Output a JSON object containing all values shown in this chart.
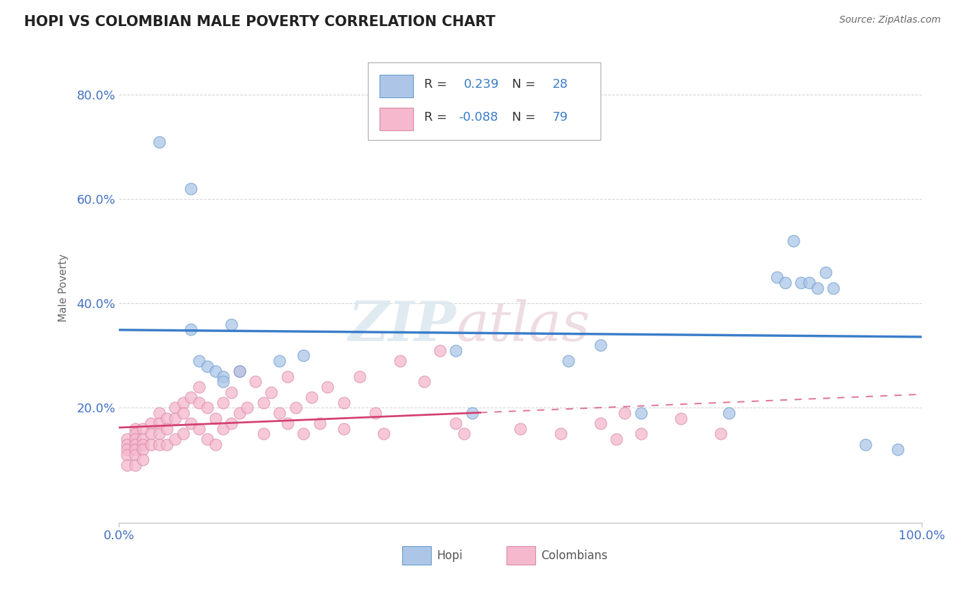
{
  "title": "HOPI VS COLOMBIAN MALE POVERTY CORRELATION CHART",
  "source": "Source: ZipAtlas.com",
  "ylabel": "Male Poverty",
  "xlim": [
    0.0,
    1.0
  ],
  "ylim": [
    -0.02,
    0.88
  ],
  "y_ticks": [
    0.0,
    0.2,
    0.4,
    0.6,
    0.8
  ],
  "y_tick_labels": [
    "",
    "20.0%",
    "40.0%",
    "60.0%",
    "80.0%"
  ],
  "x_ticks": [
    0.0,
    1.0
  ],
  "x_tick_labels": [
    "0.0%",
    "100.0%"
  ],
  "hopi_R": 0.239,
  "hopi_N": 28,
  "colombian_R": -0.088,
  "colombian_N": 79,
  "hopi_color": "#adc6e8",
  "hopi_edge_color": "#6699cc",
  "hopi_line_color": "#3a7dc9",
  "colombian_color": "#f5b8cc",
  "colombian_edge_color": "#d888aa",
  "colombian_line_color": "#d44070",
  "background_color": "#ffffff",
  "grid_color": "#cccccc",
  "watermark_color": "#dde8f0",
  "hopi_x": [
    0.05,
    0.09,
    0.09,
    0.1,
    0.11,
    0.12,
    0.13,
    0.13,
    0.14,
    0.15,
    0.2,
    0.23,
    0.42,
    0.44,
    0.56,
    0.6,
    0.65,
    0.76,
    0.82,
    0.83,
    0.84,
    0.85,
    0.86,
    0.87,
    0.88,
    0.89,
    0.93,
    0.97
  ],
  "hopi_y": [
    0.71,
    0.62,
    0.35,
    0.29,
    0.28,
    0.27,
    0.26,
    0.25,
    0.36,
    0.27,
    0.29,
    0.3,
    0.31,
    0.19,
    0.29,
    0.32,
    0.19,
    0.19,
    0.45,
    0.44,
    0.52,
    0.44,
    0.44,
    0.43,
    0.46,
    0.43,
    0.13,
    0.12
  ],
  "colombian_x": [
    0.01,
    0.01,
    0.01,
    0.01,
    0.01,
    0.02,
    0.02,
    0.02,
    0.02,
    0.02,
    0.02,
    0.02,
    0.03,
    0.03,
    0.03,
    0.03,
    0.03,
    0.04,
    0.04,
    0.04,
    0.05,
    0.05,
    0.05,
    0.05,
    0.06,
    0.06,
    0.06,
    0.07,
    0.07,
    0.07,
    0.08,
    0.08,
    0.08,
    0.09,
    0.09,
    0.1,
    0.1,
    0.1,
    0.11,
    0.11,
    0.12,
    0.12,
    0.13,
    0.13,
    0.14,
    0.14,
    0.15,
    0.15,
    0.16,
    0.17,
    0.18,
    0.18,
    0.19,
    0.2,
    0.21,
    0.21,
    0.22,
    0.23,
    0.24,
    0.25,
    0.26,
    0.28,
    0.28,
    0.3,
    0.32,
    0.33,
    0.35,
    0.38,
    0.4,
    0.42,
    0.43,
    0.5,
    0.55,
    0.6,
    0.62,
    0.63,
    0.65,
    0.7,
    0.75
  ],
  "colombian_y": [
    0.14,
    0.13,
    0.12,
    0.11,
    0.09,
    0.16,
    0.15,
    0.14,
    0.13,
    0.12,
    0.11,
    0.09,
    0.16,
    0.14,
    0.13,
    0.12,
    0.1,
    0.17,
    0.15,
    0.13,
    0.19,
    0.17,
    0.15,
    0.13,
    0.18,
    0.16,
    0.13,
    0.2,
    0.18,
    0.14,
    0.21,
    0.19,
    0.15,
    0.22,
    0.17,
    0.24,
    0.21,
    0.16,
    0.2,
    0.14,
    0.18,
    0.13,
    0.21,
    0.16,
    0.23,
    0.17,
    0.27,
    0.19,
    0.2,
    0.25,
    0.21,
    0.15,
    0.23,
    0.19,
    0.26,
    0.17,
    0.2,
    0.15,
    0.22,
    0.17,
    0.24,
    0.21,
    0.16,
    0.26,
    0.19,
    0.15,
    0.29,
    0.25,
    0.31,
    0.17,
    0.15,
    0.16,
    0.15,
    0.17,
    0.14,
    0.19,
    0.15,
    0.18,
    0.15
  ]
}
